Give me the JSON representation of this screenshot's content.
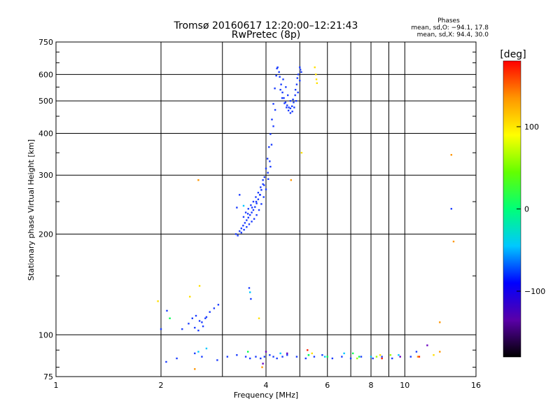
{
  "chart_data": {
    "type": "scatter",
    "title": "Tromsø 20160617 12:20:00–12:21:43",
    "subtitle": "RwPretec (8p)",
    "xlabel": "Frequency [MHz]",
    "ylabel": "Stationary phase Virtual Height [km]",
    "x_scale": "log2",
    "y_scale": "log",
    "xlim": [
      1,
      16
    ],
    "ylim": [
      75,
      750
    ],
    "x_ticks": [
      1,
      2,
      4,
      6,
      8,
      10,
      16
    ],
    "x_tick_labels": [
      "1",
      "2",
      "4",
      "6",
      "8",
      "10",
      "16"
    ],
    "y_ticks": [
      75,
      100,
      200,
      300,
      400,
      500,
      600,
      750
    ],
    "y_tick_labels": [
      "75",
      "100",
      "200",
      "300",
      "400",
      "500",
      "600",
      "750"
    ],
    "grid": true,
    "stats": {
      "heading": "Phases",
      "line_o": "mean, sd,O: −94.1, 17.8",
      "line_x": "mean, sd,X:  94.4, 30.0"
    },
    "colorbar": {
      "label": "[deg]",
      "range": [
        -180,
        180
      ],
      "ticks": [
        100,
        0,
        -100
      ],
      "tick_labels": [
        "100",
        "0",
        "−100"
      ],
      "colors": [
        "#000000",
        "#5a00a8",
        "#0000ff",
        "#00c8ff",
        "#00ff78",
        "#64ff00",
        "#ffff00",
        "#ff9600",
        "#ff0000"
      ]
    },
    "series": [
      {
        "color": "#1a3cff",
        "points": [
          [
            3.28,
            200
          ],
          [
            3.32,
            198
          ],
          [
            3.36,
            204
          ],
          [
            3.4,
            208
          ],
          [
            3.44,
            212
          ],
          [
            3.48,
            216
          ],
          [
            3.52,
            220
          ],
          [
            3.56,
            224
          ],
          [
            3.6,
            228
          ],
          [
            3.64,
            232
          ],
          [
            3.68,
            236
          ],
          [
            3.72,
            241
          ],
          [
            3.76,
            247
          ],
          [
            3.8,
            254
          ],
          [
            3.84,
            262
          ],
          [
            3.88,
            271
          ],
          [
            3.92,
            282
          ],
          [
            3.96,
            296
          ],
          [
            4.0,
            314
          ],
          [
            4.04,
            336
          ],
          [
            4.08,
            364
          ],
          [
            4.12,
            398
          ],
          [
            4.16,
            440
          ],
          [
            4.2,
            490
          ],
          [
            4.24,
            545
          ],
          [
            4.28,
            595
          ],
          [
            4.32,
            630
          ],
          [
            4.36,
            610
          ],
          [
            4.3,
            625
          ],
          [
            3.4,
            202
          ],
          [
            3.46,
            206
          ],
          [
            3.52,
            210
          ],
          [
            3.58,
            214
          ],
          [
            3.64,
            218
          ],
          [
            3.7,
            222
          ],
          [
            3.76,
            228
          ],
          [
            3.82,
            236
          ],
          [
            3.88,
            246
          ],
          [
            3.94,
            258
          ],
          [
            4.0,
            272
          ],
          [
            4.06,
            292
          ],
          [
            4.12,
            318
          ],
          [
            3.5,
            232
          ],
          [
            3.56,
            238
          ],
          [
            3.62,
            244
          ],
          [
            3.68,
            250
          ],
          [
            3.74,
            258
          ],
          [
            3.8,
            266
          ],
          [
            3.86,
            276
          ],
          [
            3.92,
            290
          ],
          [
            3.45,
            225
          ],
          [
            3.55,
            230
          ],
          [
            3.65,
            240
          ],
          [
            3.75,
            250
          ],
          [
            3.85,
            262
          ],
          [
            3.95,
            280
          ],
          [
            4.05,
            305
          ],
          [
            4.1,
            330
          ],
          [
            4.15,
            370
          ],
          [
            4.2,
            420
          ],
          [
            4.25,
            470
          ],
          [
            4.38,
            590
          ],
          [
            4.42,
            560
          ],
          [
            4.46,
            530
          ],
          [
            4.5,
            510
          ],
          [
            4.55,
            495
          ],
          [
            4.6,
            485
          ],
          [
            4.65,
            478
          ],
          [
            4.7,
            475
          ],
          [
            4.75,
            482
          ],
          [
            4.8,
            495
          ],
          [
            4.85,
            520
          ],
          [
            4.9,
            560
          ],
          [
            4.95,
            600
          ],
          [
            5.0,
            630
          ],
          [
            5.05,
            610
          ],
          [
            4.4,
            540
          ],
          [
            4.45,
            510
          ],
          [
            4.52,
            492
          ],
          [
            4.58,
            478
          ],
          [
            4.64,
            468
          ],
          [
            4.7,
            460
          ],
          [
            4.76,
            465
          ],
          [
            4.82,
            478
          ],
          [
            4.88,
            500
          ],
          [
            4.94,
            530
          ],
          [
            5.0,
            575
          ],
          [
            4.48,
            580
          ],
          [
            4.56,
            550
          ],
          [
            4.62,
            520
          ],
          [
            4.7,
            500
          ],
          [
            4.78,
            505
          ],
          [
            4.86,
            540
          ],
          [
            4.92,
            585
          ],
          [
            5.02,
            620
          ],
          [
            3.3,
            240
          ],
          [
            3.36,
            262
          ],
          [
            3.62,
            128
          ],
          [
            3.58,
            138
          ],
          [
            2.08,
            118
          ],
          [
            2.3,
            104
          ],
          [
            2.4,
            108
          ],
          [
            2.46,
            112
          ],
          [
            2.52,
            114
          ],
          [
            2.58,
            110
          ],
          [
            2.64,
            106
          ],
          [
            2.7,
            113
          ],
          [
            2.76,
            117
          ],
          [
            2.84,
            120
          ],
          [
            2.92,
            123
          ],
          [
            2.5,
            105
          ],
          [
            2.56,
            103
          ],
          [
            2.62,
            109
          ],
          [
            2.68,
            112
          ],
          [
            2.0,
            104
          ],
          [
            2.07,
            83
          ],
          [
            2.22,
            85
          ],
          [
            2.5,
            88
          ],
          [
            2.62,
            86
          ],
          [
            2.9,
            84
          ],
          [
            3.1,
            86
          ],
          [
            3.3,
            87
          ],
          [
            3.5,
            86
          ],
          [
            3.6,
            85
          ],
          [
            3.74,
            86
          ],
          [
            3.86,
            85
          ],
          [
            3.96,
            86
          ],
          [
            4.1,
            87
          ],
          [
            4.2,
            86
          ],
          [
            4.3,
            85
          ],
          [
            4.46,
            86
          ],
          [
            4.6,
            87
          ],
          [
            4.9,
            86
          ],
          [
            5.2,
            85
          ],
          [
            5.5,
            86
          ],
          [
            5.8,
            87
          ],
          [
            6.2,
            85
          ],
          [
            6.6,
            86
          ],
          [
            7.0,
            85
          ],
          [
            7.5,
            86
          ],
          [
            8.1,
            85
          ],
          [
            8.6,
            86
          ],
          [
            9.2,
            85
          ],
          [
            10.4,
            86
          ],
          [
            10.8,
            89
          ],
          [
            13.6,
            238
          ]
        ]
      },
      {
        "color": "#00c8ff",
        "points": [
          [
            2.56,
            89
          ],
          [
            2.7,
            91
          ],
          [
            3.6,
            134
          ],
          [
            3.45,
            243
          ],
          [
            4.4,
            88
          ],
          [
            5.3,
            87
          ],
          [
            6.7,
            88
          ],
          [
            8.0,
            86
          ],
          [
            9.6,
            87
          ],
          [
            5.9,
            86
          ]
        ]
      },
      {
        "color": "#00ff50",
        "points": [
          [
            2.12,
            112
          ],
          [
            3.55,
            89
          ],
          [
            5.3,
            87
          ],
          [
            6.0,
            86
          ],
          [
            7.1,
            88
          ],
          [
            7.4,
            86
          ]
        ]
      },
      {
        "color": "#a0ff00",
        "points": [
          [
            7.3,
            85
          ],
          [
            8.3,
            86
          ],
          [
            9.1,
            87
          ]
        ]
      },
      {
        "color": "#ffe000",
        "points": [
          [
            5.52,
            630
          ],
          [
            5.56,
            600
          ],
          [
            5.58,
            580
          ],
          [
            5.6,
            565
          ],
          [
            5.06,
            350
          ],
          [
            1.96,
            126
          ],
          [
            2.58,
            140
          ],
          [
            2.42,
            130
          ],
          [
            3.82,
            112
          ],
          [
            5.42,
            88
          ],
          [
            8.5,
            87
          ],
          [
            12.1,
            87
          ]
        ]
      },
      {
        "color": "#ff9600",
        "points": [
          [
            2.56,
            290
          ],
          [
            4.72,
            290
          ],
          [
            13.8,
            190
          ],
          [
            13.6,
            345
          ],
          [
            12.6,
            109
          ],
          [
            2.5,
            79
          ],
          [
            3.9,
            80
          ],
          [
            10.9,
            86
          ],
          [
            12.6,
            89
          ]
        ]
      },
      {
        "color": "#ff2000",
        "points": [
          [
            5.26,
            90
          ],
          [
            8.6,
            85
          ],
          [
            11.0,
            86
          ]
        ]
      },
      {
        "color": "#6a00c0",
        "points": [
          [
            3.92,
            82
          ],
          [
            4.6,
            88
          ],
          [
            11.6,
            93
          ],
          [
            9.7,
            86
          ],
          [
            4.0,
            89
          ]
        ]
      }
    ]
  }
}
